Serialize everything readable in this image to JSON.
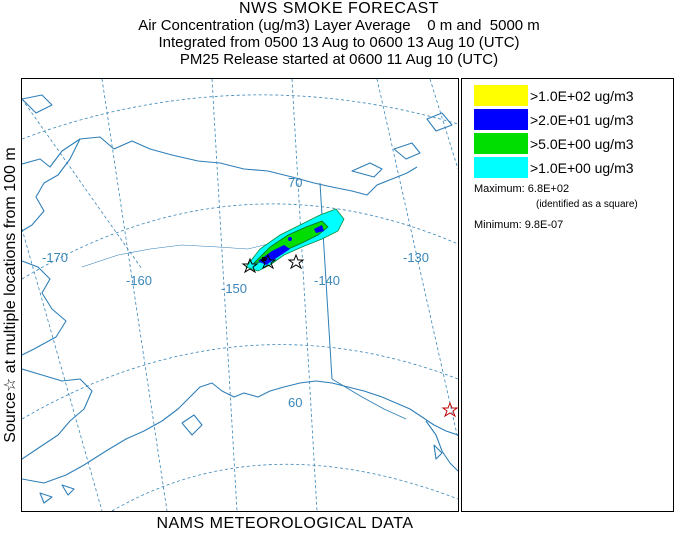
{
  "title": {
    "main": "NWS SMOKE FORECAST",
    "line1": "Air Concentration (ug/m3) Layer Average    0 m and  5000 m",
    "line2": "Integrated from 0500 13 Aug to 0600 13 Aug 10 (UTC)",
    "line3": "PM25 Release started at 0600 11 Aug 10 (UTC)"
  },
  "side_label": "Source☆ at multiple locations  from   100 m",
  "footer": "NAMS METEOROLOGICAL DATA",
  "legend": {
    "items": [
      {
        "label": ">1.0E+02 ug/m3",
        "color": "#ffff00"
      },
      {
        "label": ">2.0E+01 ug/m3",
        "color": "#0000ff"
      },
      {
        "label": ">5.0E+00 ug/m3",
        "color": "#00dd00"
      },
      {
        "label": ">1.0E+00 ug/m3",
        "color": "#00ffff"
      }
    ],
    "maximum": "Maximum: 6.8E+02",
    "maximum_note": "(identified as a square)",
    "minimum": "Minimum: 9.8E-07"
  },
  "map": {
    "grid_color": "#3a86b8",
    "coast_color": "#2f7fb8",
    "longitude_labels": [
      "-170",
      "-160",
      "-150",
      "-140",
      "-130"
    ],
    "latitude_labels": [
      "70",
      "60"
    ]
  }
}
